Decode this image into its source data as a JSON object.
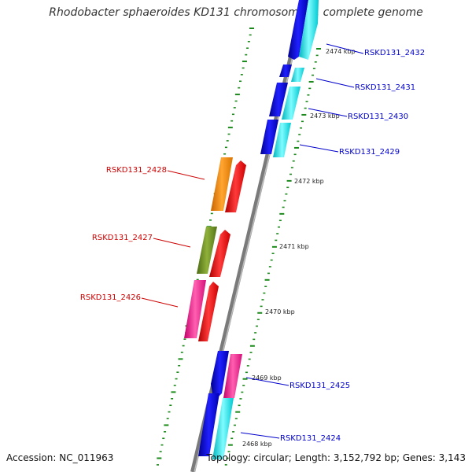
{
  "title": "Rhodobacter sphaeroides KD131 chromosome 1, complete genome",
  "footer": {
    "accession": "Accession: NC_011963",
    "topology": "Topology: circular; Length: 3,152,792 bp; Genes: 3,143"
  },
  "colors": {
    "forward_label": "#0000cc",
    "reverse_label": "#cc0000",
    "tick": "#1a8a1a",
    "axis": "#777777",
    "blue": "#0000ee",
    "cyan": "#00e5ee",
    "orange": "#ff8c00",
    "red": "#ff0000",
    "olive": "#6b8e23",
    "magenta": "#ff1493"
  },
  "ticks": [
    {
      "label": "2474 kbp"
    },
    {
      "label": "2473 kbp"
    },
    {
      "label": "2472 kbp"
    },
    {
      "label": "2471 kbp"
    },
    {
      "label": "2470 kbp"
    },
    {
      "label": "2469 kbp"
    },
    {
      "label": "2468 kbp"
    }
  ],
  "genes": [
    {
      "label": "RSKD131_2432",
      "strand": "forward"
    },
    {
      "label": "RSKD131_2431",
      "strand": "forward"
    },
    {
      "label": "RSKD131_2430",
      "strand": "forward"
    },
    {
      "label": "RSKD131_2429",
      "strand": "forward"
    },
    {
      "label": "RSKD131_2428",
      "strand": "reverse"
    },
    {
      "label": "RSKD131_2427",
      "strand": "reverse"
    },
    {
      "label": "RSKD131_2426",
      "strand": "reverse"
    },
    {
      "label": "RSKD131_2425",
      "strand": "forward"
    },
    {
      "label": "RSKD131_2424",
      "strand": "forward"
    }
  ]
}
